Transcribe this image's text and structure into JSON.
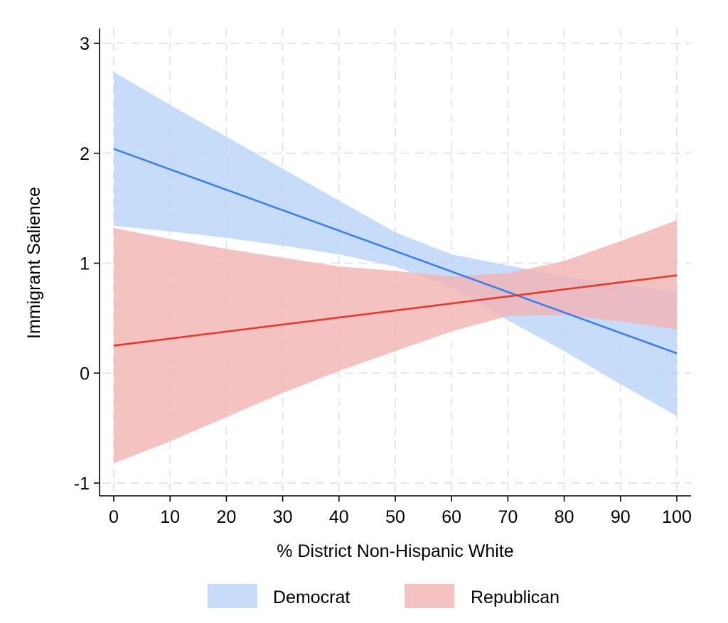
{
  "chart_data": {
    "type": "line",
    "title": "",
    "xlabel": "% District Non-Hispanic White",
    "ylabel": "Immigrant Salience",
    "xlim": [
      0,
      100
    ],
    "ylim": [
      -1,
      3
    ],
    "xticks": [
      0,
      10,
      20,
      30,
      40,
      50,
      60,
      70,
      80,
      90,
      100
    ],
    "yticks": [
      -1,
      0,
      1,
      2,
      3
    ],
    "grid": true,
    "legend_position": "bottom",
    "series": [
      {
        "name": "Democrat",
        "color": "#3d7ef0",
        "band_color": "#b9d3f7",
        "x": [
          0,
          100
        ],
        "y": [
          2.04,
          0.18
        ],
        "ci_x": [
          0,
          10,
          20,
          30,
          40,
          50,
          60,
          70,
          80,
          90,
          100
        ],
        "ci_upper": [
          2.74,
          2.44,
          2.15,
          1.86,
          1.57,
          1.28,
          1.08,
          0.98,
          0.88,
          0.81,
          0.74
        ],
        "ci_lower": [
          1.34,
          1.29,
          1.23,
          1.16,
          1.08,
          0.97,
          0.78,
          0.48,
          0.2,
          -0.1,
          -0.39
        ]
      },
      {
        "name": "Republican",
        "color": "#e8392b",
        "band_color": "#f2b3b3",
        "x": [
          0,
          100
        ],
        "y": [
          0.25,
          0.89
        ],
        "ci_x": [
          0,
          10,
          20,
          30,
          40,
          50,
          60,
          70,
          80,
          90,
          100
        ],
        "ci_upper": [
          1.32,
          1.22,
          1.13,
          1.05,
          0.97,
          0.93,
          0.88,
          0.91,
          1.02,
          1.2,
          1.39
        ],
        "ci_lower": [
          -0.82,
          -0.62,
          -0.4,
          -0.18,
          0.02,
          0.2,
          0.38,
          0.52,
          0.53,
          0.47,
          0.4
        ]
      }
    ]
  }
}
